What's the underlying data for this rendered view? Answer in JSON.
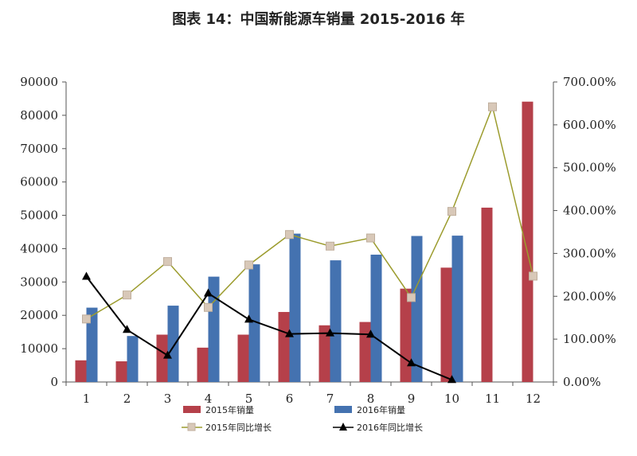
{
  "title": "图表 14：中国新能源车销量 2015-2016 年",
  "chart_data": {
    "type": "bar",
    "title": "图表 14：中国新能源车销量 2015-2016 年",
    "categories": [
      "1",
      "2",
      "3",
      "4",
      "5",
      "6",
      "7",
      "8",
      "9",
      "10",
      "11",
      "12"
    ],
    "ylim": [
      0,
      90000
    ],
    "y_ticks": [
      "0",
      "10000",
      "20000",
      "30000",
      "40000",
      "50000",
      "60000",
      "70000",
      "80000",
      "90000"
    ],
    "y2lim": [
      0,
      7
    ],
    "y2_ticks": [
      "0.00%",
      "100.00%",
      "200.00%",
      "300.00%",
      "400.00%",
      "500.00%",
      "600.00%",
      "700.00%"
    ],
    "grid": false,
    "legend_position": "bottom",
    "series": [
      {
        "name": "2015年销量",
        "kind": "bar",
        "axis": "left",
        "color": "#b5404a",
        "values": [
          6500,
          6200,
          14200,
          10300,
          14200,
          21000,
          17000,
          18000,
          28000,
          34300,
          52300,
          84100
        ]
      },
      {
        "name": "2016年销量",
        "kind": "bar",
        "axis": "left",
        "color": "#4472b0",
        "values": [
          22300,
          13800,
          22900,
          31600,
          35300,
          44500,
          36500,
          38200,
          43800,
          43900,
          null,
          null
        ]
      },
      {
        "name": "2015年同比增长",
        "kind": "line",
        "axis": "right",
        "color": "#9c9c2e",
        "marker": "square",
        "values": [
          1.47,
          2.03,
          2.81,
          1.74,
          2.73,
          3.44,
          3.17,
          3.36,
          1.97,
          3.98,
          6.42,
          2.47
        ]
      },
      {
        "name": "2016年同比增长",
        "kind": "line",
        "axis": "right",
        "color": "#000000",
        "marker": "triangle",
        "values": [
          2.46,
          1.22,
          0.62,
          2.07,
          1.46,
          1.12,
          1.14,
          1.11,
          0.44,
          0.05,
          null,
          null
        ]
      }
    ]
  }
}
